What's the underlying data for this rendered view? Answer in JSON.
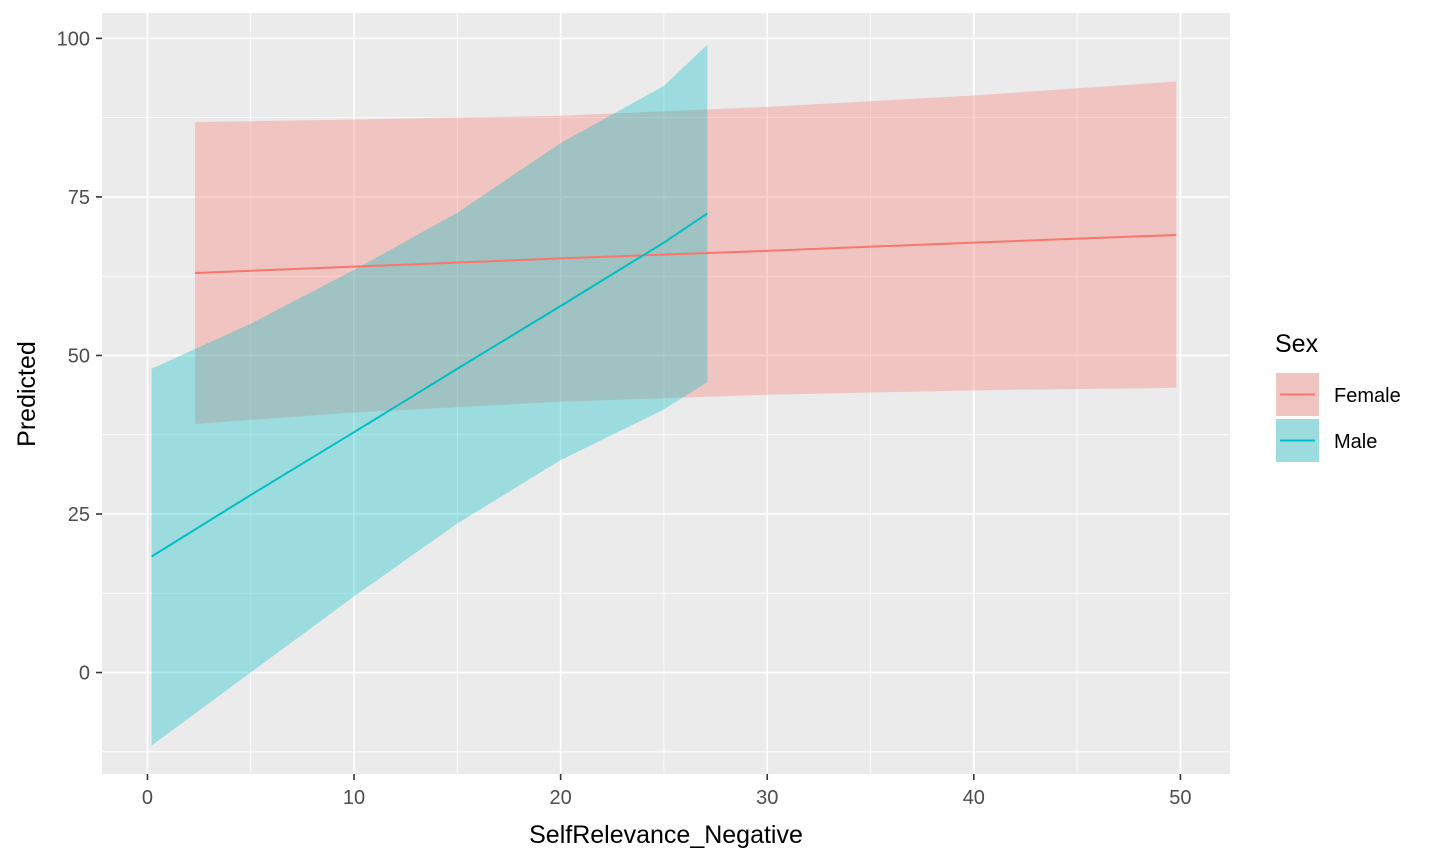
{
  "chart_data": {
    "type": "line",
    "xlabel": "SelfRelevance_Negative",
    "ylabel": "Predicted",
    "xlim": [
      -2.2,
      52.4
    ],
    "ylim": [
      -16,
      104
    ],
    "x_ticks": [
      0,
      10,
      20,
      30,
      40,
      50
    ],
    "y_ticks": [
      0,
      25,
      50,
      75,
      100
    ],
    "grid": true,
    "legend": {
      "title": "Sex",
      "position": "right"
    },
    "colors": {
      "panel": "#EBEBEB",
      "grid": "#FFFFFF",
      "female": "#F8766D",
      "male": "#00BFC4"
    },
    "series": [
      {
        "name": "Female",
        "x": [
          2.3,
          10,
          20,
          30,
          40,
          49.8
        ],
        "y": [
          63.0,
          64.0,
          65.3,
          66.5,
          67.8,
          69.0
        ],
        "lower": [
          39.2,
          41.0,
          42.7,
          43.8,
          44.5,
          44.9
        ],
        "upper": [
          86.8,
          87.2,
          87.8,
          89.2,
          91.0,
          93.2
        ]
      },
      {
        "name": "Male",
        "x": [
          0.2,
          5,
          10,
          15,
          20,
          25,
          27.1
        ],
        "y": [
          18.3,
          28.0,
          37.9,
          47.9,
          57.8,
          67.8,
          72.4
        ],
        "lower": [
          -11.5,
          0.0,
          12.0,
          23.5,
          33.5,
          41.5,
          45.8
        ],
        "upper": [
          47.9,
          55.0,
          63.5,
          72.5,
          83.5,
          92.5,
          99.0
        ]
      }
    ]
  }
}
